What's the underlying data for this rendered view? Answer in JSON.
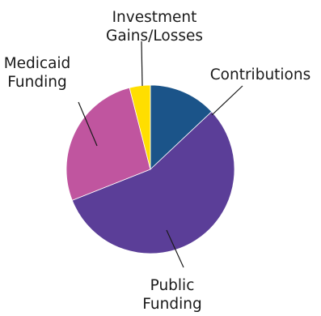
{
  "chart_data": {
    "type": "pie",
    "slices": [
      {
        "label": "Contributions",
        "label_lines": [
          "Contributions"
        ],
        "value": 13,
        "color": "#1b5489"
      },
      {
        "label": "Public Funding",
        "label_lines": [
          "Public",
          "Funding"
        ],
        "value": 56,
        "color": "#5b3e98"
      },
      {
        "label": "Medicaid Funding",
        "label_lines": [
          "Medicaid",
          "Funding"
        ],
        "value": 27,
        "color": "#c0559f"
      },
      {
        "label": "Investment Gains/Losses",
        "label_lines": [
          "Investment",
          "Gains/Losses"
        ],
        "value": 4,
        "color": "#ffde00"
      }
    ],
    "start_direction": "top",
    "direction": "clockwise",
    "legend": "none",
    "label_style": "outside labels with leader lines"
  }
}
